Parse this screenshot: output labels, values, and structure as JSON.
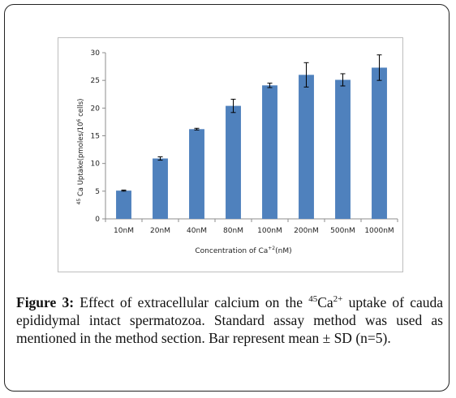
{
  "chart_data": {
    "type": "bar",
    "categories": [
      "10nM",
      "20nM",
      "40nM",
      "80nM",
      "100nM",
      "200nM",
      "500nM",
      "1000nM"
    ],
    "values": [
      5.1,
      10.9,
      16.2,
      20.4,
      24.1,
      26.0,
      25.1,
      27.3
    ],
    "errors": [
      0.1,
      0.3,
      0.15,
      1.2,
      0.4,
      2.2,
      1.1,
      2.3
    ],
    "ylim": [
      0,
      30
    ],
    "yticks": [
      0,
      5,
      10,
      15,
      20,
      25,
      30
    ],
    "xlabel_text": "Concentration of Ca",
    "xlabel_sup": "+2",
    "xlabel_unit": "(nM)",
    "ylabel_pre": "45",
    "ylabel_main": " Ca Uptake(pmoles/10",
    "ylabel_exp": "6",
    "ylabel_post": " cells)",
    "bar_color": "#4f81bd",
    "grid": false,
    "legend": "none"
  },
  "caption": {
    "label": "Figure 3:",
    "text_1": " Effect of extracellular calcium on the ",
    "sup_1": "45",
    "ion": "Ca",
    "sup_2": "2+",
    "text_2": " uptake of cauda epididymal intact spermatozoa. Standard assay method was used as mentioned in the method section. Bar represent mean ± SD (n=5)."
  }
}
